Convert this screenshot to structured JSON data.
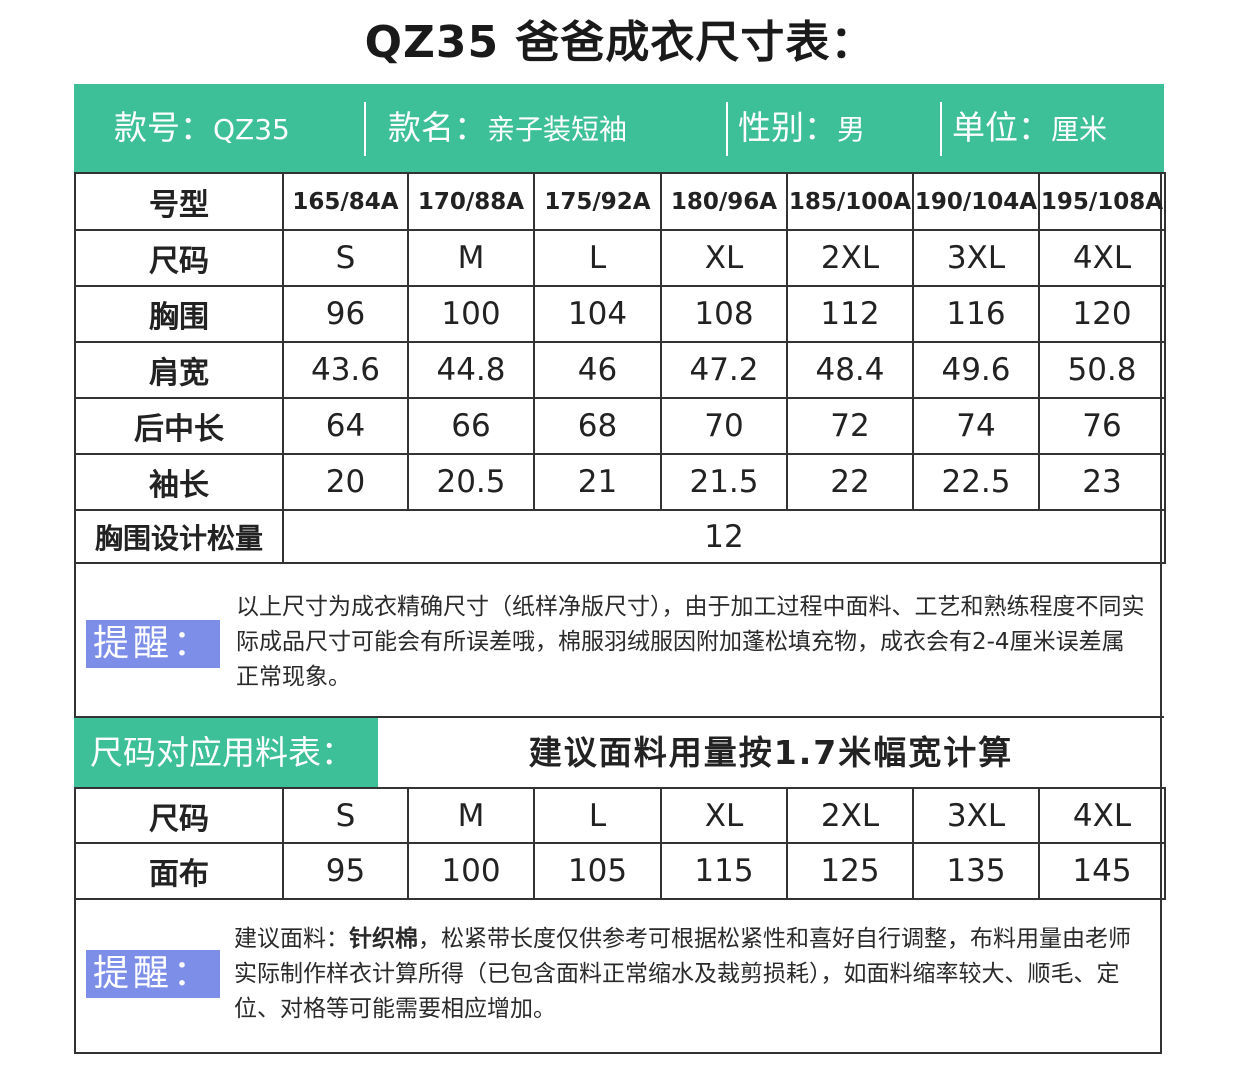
{
  "title": "QZ35 爸爸成衣尺寸表：",
  "info": {
    "style_no_label": "款号：",
    "style_no": "QZ35",
    "name_label": "款名：",
    "name": "亲子装短袖",
    "gender_label": "性别：",
    "gender": "男",
    "unit_label": "单位：",
    "unit": "厘米"
  },
  "size_table": {
    "rows": [
      {
        "label": "号型",
        "values": [
          "165/84A",
          "170/88A",
          "175/92A",
          "180/96A",
          "185/100A",
          "190/104A",
          "195/108A"
        ]
      },
      {
        "label": "尺码",
        "values": [
          "S",
          "M",
          "L",
          "XL",
          "2XL",
          "3XL",
          "4XL"
        ]
      },
      {
        "label": "胸围",
        "values": [
          "96",
          "100",
          "104",
          "108",
          "112",
          "116",
          "120"
        ]
      },
      {
        "label": "肩宽",
        "values": [
          "43.6",
          "44.8",
          "46",
          "47.2",
          "48.4",
          "49.6",
          "50.8"
        ]
      },
      {
        "label": "后中长",
        "values": [
          "64",
          "66",
          "68",
          "70",
          "72",
          "74",
          "76"
        ]
      },
      {
        "label": "袖长",
        "values": [
          "20",
          "20.5",
          "21",
          "21.5",
          "22",
          "22.5",
          "23"
        ]
      }
    ],
    "ease_label": "胸围设计松量",
    "ease_value": "12"
  },
  "notice1": {
    "badge": "提醒：",
    "text": "以上尺寸为成衣精确尺寸（纸样净版尺寸），由于加工过程中面料、工艺和熟练程度不同实际成品尺寸可能会有所误差哦，棉服羽绒服因附加蓬松填充物，成衣会有2-4厘米误差属正常现象。"
  },
  "fabric": {
    "title": "尺码对应用料表：",
    "note": "建议面料用量按1.7米幅宽计算",
    "rows": [
      {
        "label": "尺码",
        "values": [
          "S",
          "M",
          "L",
          "XL",
          "2XL",
          "3XL",
          "4XL"
        ]
      },
      {
        "label": "面布",
        "values": [
          "95",
          "100",
          "105",
          "115",
          "125",
          "135",
          "145"
        ]
      }
    ]
  },
  "notice2": {
    "badge": "提醒：",
    "prefix": "建议面料：",
    "bold": "针织棉",
    "text": "，松紧带长度仅供参考可根据松紧性和喜好自行调整，布料用量由老师实际制作样衣计算所得（已包含面料正常缩水及裁剪损耗），如面料缩率较大、顺毛、定位、对格等可能需要相应增加。"
  },
  "colors": {
    "accent_green": "#3dbf97",
    "badge_blue": "#7d8ee8"
  }
}
